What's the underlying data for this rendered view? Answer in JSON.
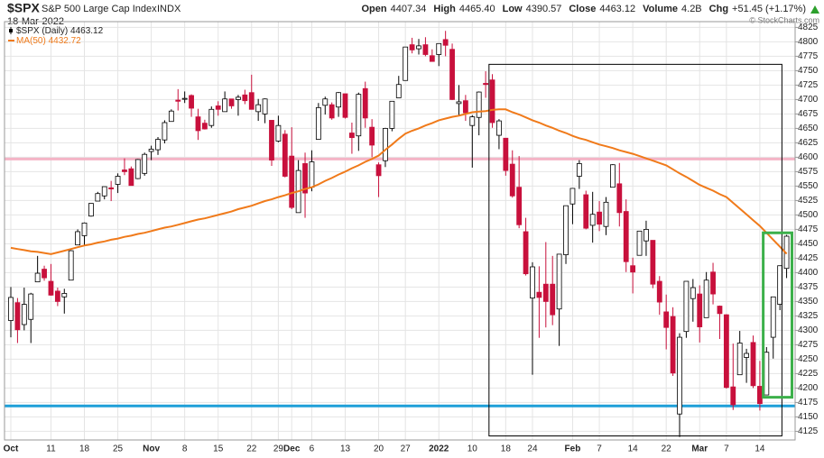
{
  "header": {
    "symbol": "$SPX",
    "name": "S&P 500 Large Cap Index",
    "exchange": "INDX",
    "date": "18-Mar-2022",
    "copyright": "© StockCharts.com",
    "quote": [
      {
        "label": "Open",
        "value": "4407.34"
      },
      {
        "label": "High",
        "value": "4465.40"
      },
      {
        "label": "Low",
        "value": "4390.57"
      },
      {
        "label": "Close",
        "value": "4463.12"
      },
      {
        "label": "Volume",
        "value": "4.2B"
      },
      {
        "label": "Chg",
        "value": "+51.45 (+1.17%)"
      }
    ]
  },
  "chart_data": {
    "type": "candlestick",
    "categories": [
      "Oct",
      null,
      null,
      null,
      null,
      null,
      "11",
      null,
      null,
      null,
      null,
      "18",
      null,
      null,
      null,
      null,
      "25",
      null,
      null,
      null,
      null,
      "Nov",
      null,
      null,
      null,
      null,
      "8",
      null,
      null,
      null,
      null,
      "15",
      null,
      null,
      null,
      null,
      "22",
      null,
      null,
      null,
      "29",
      null,
      "Dec",
      null,
      null,
      "6",
      null,
      null,
      null,
      null,
      "13",
      null,
      null,
      null,
      null,
      "20",
      null,
      null,
      null,
      "27",
      null,
      null,
      null,
      null,
      "2022",
      null,
      null,
      null,
      null,
      "10",
      null,
      null,
      null,
      null,
      "18",
      null,
      null,
      null,
      "24",
      null,
      null,
      null,
      null,
      null,
      "Feb",
      null,
      null,
      null,
      "7",
      null,
      null,
      null,
      null,
      "14",
      null,
      null,
      null,
      null,
      "22",
      null,
      null,
      null,
      null,
      "Mar",
      null,
      null,
      null,
      "7",
      null,
      null,
      null,
      null,
      "14",
      null,
      null,
      null,
      null
    ],
    "series": [
      {
        "name": "$SPX (Daily)",
        "up_color": "#ffffff",
        "down_color": "#c8103c",
        "outline": "#000000",
        "open": [
          4317,
          4348,
          4310,
          4319,
          4384,
          4406,
          4385,
          4368,
          4358,
          4387,
          4448,
          4464,
          4498,
          4524,
          4533,
          4547,
          4553,
          4578,
          4580,
          4563,
          4572,
          4610,
          4613,
          4630,
          4662,
          4699,
          4701,
          4707,
          4670,
          4659,
          4655,
          4689,
          4679,
          4701,
          4700,
          4708,
          4712,
          4679,
          4675,
          4664,
          4628,
          4640,
          4602,
          4504,
          4589,
          4548,
          4631,
          4690,
          4691,
          4687,
          4710,
          4642,
          4637,
          4719,
          4652,
          4587,
          4594,
          4650,
          4703,
          4733,
          4795,
          4788,
          4795,
          4776,
          4778,
          4804,
          4787,
          4693,
          4698,
          4655,
          4669,
          4728,
          4734,
          4638,
          4633,
          4588,
          4548,
          4471,
          4356,
          4366,
          4380,
          4380,
          4337,
          4431,
          4519,
          4567,
          4535,
          4482,
          4505,
          4480,
          4548,
          4554,
          4506,
          4412,
          4430,
          4455,
          4456,
          4385,
          4332,
          4324,
          4155,
          4298,
          4355,
          4363,
          4322,
          4401,
          4342,
          4327,
          4202,
          4223,
          4253,
          4279,
          4203,
          4188,
          4288,
          4345,
          4407.34
        ],
        "high": [
          4375,
          4356,
          4374,
          4365,
          4429,
          4412,
          4415,
          4374,
          4372,
          4439,
          4475,
          4487,
          4520,
          4540,
          4549,
          4559,
          4572,
          4598,
          4584,
          4597,
          4608,
          4620,
          4635,
          4664,
          4683,
          4718,
          4714,
          4709,
          4684,
          4665,
          4688,
          4697,
          4714,
          4701,
          4708,
          4717,
          4743,
          4701,
          4702,
          4664,
          4672,
          4647,
          4652,
          4595,
          4608,
          4612,
          4694,
          4705,
          4695,
          4713,
          4710,
          4660,
          4712,
          4731,
          4666,
          4591,
          4651,
          4697,
          4741,
          4791,
          4807,
          4805,
          4808,
          4787,
          4796,
          4819,
          4797,
          4725,
          4708,
          4673,
          4714,
          4749,
          4744,
          4666,
          4633,
          4612,
          4602,
          4495,
          4418,
          4411,
          4453,
          4429,
          4432,
          4516,
          4546,
          4595,
          4542,
          4540,
          4524,
          4531,
          4588,
          4590,
          4527,
          4426,
          4472,
          4490,
          4456,
          4394,
          4362,
          4340,
          4295,
          4385,
          4389,
          4378,
          4401,
          4417,
          4343,
          4328,
          4277,
          4299,
          4268,
          4291,
          4247,
          4271,
          4358,
          4412,
          4465.4
        ],
        "low": [
          4288,
          4278,
          4300,
          4278,
          4384,
          4386,
          4360,
          4342,
          4329,
          4387,
          4448,
          4448,
          4497,
          4524,
          4527,
          4524,
          4538,
          4569,
          4551,
          4562,
          4568,
          4595,
          4604,
          4624,
          4662,
          4681,
          4694,
          4670,
          4630,
          4648,
          4651,
          4672,
          4679,
          4684,
          4672,
          4692,
          4683,
          4663,
          4659,
          4585,
          4626,
          4565,
          4510,
          4504,
          4495,
          4541,
          4631,
          4674,
          4665,
          4670,
          4667,
          4606,
          4611,
          4651,
          4600,
          4531,
          4583,
          4645,
          4703,
          4733,
          4780,
          4778,
          4775,
          4766,
          4758,
          4775,
          4699,
          4671,
          4663,
          4582,
          4638,
          4703,
          4651,
          4614,
          4568,
          4530,
          4477,
          4395,
          4223,
          4287,
          4305,
          4309,
          4273,
          4415,
          4484,
          4545,
          4475,
          4452,
          4472,
          4465,
          4548,
          4480,
          4401,
          4364,
          4430,
          4429,
          4373,
          4327,
          4267,
          4221,
          4115,
          4287,
          4315,
          4279,
          4322,
          4345,
          4285,
          4199,
          4162,
          4223,
          4209,
          4200,
          4161,
          4188,
          4251,
          4335,
          4390.57
        ],
        "close": [
          4357,
          4301,
          4345,
          4363,
          4399,
          4391,
          4361,
          4350,
          4364,
          4438,
          4471,
          4486,
          4520,
          4537,
          4549,
          4545,
          4567,
          4575,
          4551,
          4596,
          4605,
          4614,
          4631,
          4660,
          4680,
          4697,
          4702,
          4685,
          4646,
          4649,
          4683,
          4683,
          4701,
          4689,
          4704,
          4698,
          4683,
          4691,
          4701,
          4595,
          4655,
          4567,
          4513,
          4577,
          4538,
          4592,
          4686,
          4701,
          4668,
          4712,
          4669,
          4634,
          4709,
          4668,
          4621,
          4568,
          4650,
          4697,
          4726,
          4791,
          4786,
          4793,
          4778,
          4766,
          4797,
          4794,
          4700,
          4696,
          4677,
          4670,
          4713,
          4726,
          4660,
          4663,
          4577,
          4533,
          4483,
          4398,
          4410,
          4357,
          4350,
          4327,
          4432,
          4516,
          4546,
          4589,
          4477,
          4501,
          4484,
          4522,
          4587,
          4504,
          4419,
          4401,
          4472,
          4475,
          4380,
          4349,
          4305,
          4226,
          4288,
          4385,
          4374,
          4306,
          4387,
          4363,
          4329,
          4201,
          4171,
          4278,
          4260,
          4204,
          4173,
          4262,
          4358,
          4412,
          4463.12
        ]
      },
      {
        "name": "MA(50)",
        "color": "#f07a1a",
        "values": [
          4443,
          4441,
          4439,
          4437,
          4436,
          4434,
          4432,
          4435,
          4438,
          4441,
          4444,
          4447,
          4449,
          4452,
          4454,
          4457,
          4459,
          4462,
          4464,
          4467,
          4469,
          4472,
          4475,
          4478,
          4480,
          4483,
          4486,
          4489,
          4492,
          4494,
          4497,
          4500,
          4503,
          4506,
          4510,
          4513,
          4516,
          4520,
          4524,
          4527,
          4531,
          4534,
          4538,
          4541,
          4545,
          4548,
          4553,
          4559,
          4564,
          4570,
          4575,
          4581,
          4586,
          4592,
          4597,
          4603,
          4613,
          4622,
          4632,
          4641,
          4646,
          4650,
          4655,
          4659,
          4664,
          4667,
          4670,
          4672,
          4675,
          4678,
          4679,
          4680,
          4682,
          4683,
          4683,
          4678,
          4674,
          4669,
          4664,
          4660,
          4655,
          4651,
          4646,
          4642,
          4637,
          4633,
          4630,
          4626,
          4622,
          4619,
          4616,
          4612,
          4609,
          4606,
          4602,
          4598,
          4594,
          4590,
          4586,
          4579,
          4572,
          4566,
          4559,
          4552,
          4547,
          4542,
          4536,
          4531,
          4521,
          4511,
          4501,
          4491,
          4481,
          4469,
          4457,
          4445,
          4432.72
        ]
      }
    ],
    "ylim": [
      4110,
      4835
    ],
    "yticks": [
      4125,
      4150,
      4175,
      4200,
      4225,
      4250,
      4275,
      4300,
      4325,
      4350,
      4375,
      4400,
      4425,
      4450,
      4475,
      4500,
      4525,
      4550,
      4575,
      4600,
      4625,
      4650,
      4675,
      4700,
      4725,
      4750,
      4775,
      4800,
      4825
    ],
    "grid": true,
    "hlines": [
      {
        "value": 4597,
        "color": "#f4b4c6"
      },
      {
        "value": 4169,
        "color": "#1e9fd8"
      }
    ],
    "boxes": [
      {
        "x": [
          71.5,
          115.3
        ],
        "y": [
          4117,
          4761
        ],
        "color": "#000000"
      },
      {
        "x": [
          112.5,
          116.8
        ],
        "y": [
          4184,
          4469
        ],
        "color": "#3cb04a"
      }
    ]
  }
}
